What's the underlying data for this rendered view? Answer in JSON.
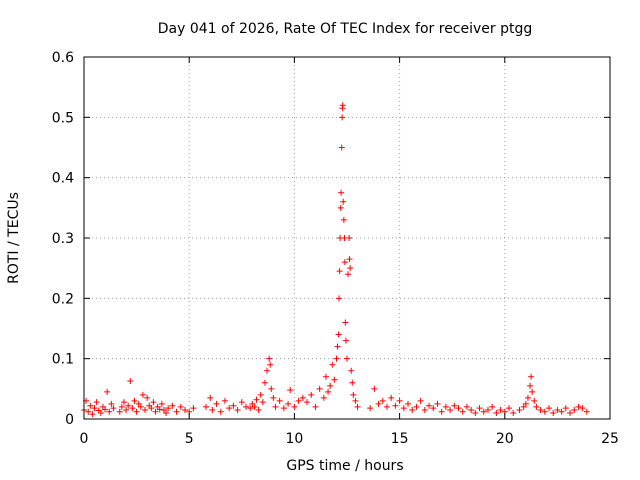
{
  "chart_data": {
    "type": "scatter",
    "title": "Day 041 of 2026, Rate Of TEC Index for receiver ptgg",
    "xlabel": "GPS time / hours",
    "ylabel": "ROTI / TECUs",
    "xlim": [
      0,
      25
    ],
    "ylim": [
      0,
      0.6
    ],
    "x_ticks": [
      "0",
      "5",
      "10",
      "15",
      "20",
      "25"
    ],
    "y_ticks": [
      "0",
      "0.1",
      "0.2",
      "0.3",
      "0.4",
      "0.5",
      "0.6"
    ],
    "x_tick_values": [
      0,
      5,
      10,
      15,
      20,
      25
    ],
    "y_tick_values": [
      0,
      0.1,
      0.2,
      0.3,
      0.4,
      0.5,
      0.6
    ],
    "grid": true,
    "marker": "+",
    "color": "#ff0000",
    "series": [
      {
        "points": [
          [
            0.0,
            0.015
          ],
          [
            0.1,
            0.03
          ],
          [
            0.2,
            0.012
          ],
          [
            0.3,
            0.022
          ],
          [
            0.4,
            0.008
          ],
          [
            0.5,
            0.018
          ],
          [
            0.6,
            0.028
          ],
          [
            0.7,
            0.014
          ],
          [
            0.8,
            0.01
          ],
          [
            0.9,
            0.02
          ],
          [
            1.0,
            0.016
          ],
          [
            1.1,
            0.045
          ],
          [
            1.2,
            0.012
          ],
          [
            1.3,
            0.025
          ],
          [
            1.4,
            0.018
          ],
          [
            1.7,
            0.012
          ],
          [
            1.8,
            0.02
          ],
          [
            1.9,
            0.028
          ],
          [
            2.0,
            0.015
          ],
          [
            2.1,
            0.022
          ],
          [
            2.2,
            0.063
          ],
          [
            2.3,
            0.018
          ],
          [
            2.4,
            0.03
          ],
          [
            2.5,
            0.012
          ],
          [
            2.6,
            0.025
          ],
          [
            2.7,
            0.02
          ],
          [
            2.8,
            0.04
          ],
          [
            2.9,
            0.015
          ],
          [
            3.0,
            0.035
          ],
          [
            3.1,
            0.022
          ],
          [
            3.2,
            0.018
          ],
          [
            3.3,
            0.028
          ],
          [
            3.4,
            0.012
          ],
          [
            3.5,
            0.02
          ],
          [
            3.6,
            0.016
          ],
          [
            3.7,
            0.025
          ],
          [
            3.8,
            0.015
          ],
          [
            3.9,
            0.01
          ],
          [
            4.0,
            0.018
          ],
          [
            4.2,
            0.022
          ],
          [
            4.4,
            0.012
          ],
          [
            4.6,
            0.02
          ],
          [
            4.8,
            0.015
          ],
          [
            5.0,
            0.012
          ],
          [
            5.2,
            0.018
          ],
          [
            5.8,
            0.02
          ],
          [
            6.0,
            0.035
          ],
          [
            6.1,
            0.015
          ],
          [
            6.3,
            0.025
          ],
          [
            6.5,
            0.012
          ],
          [
            6.7,
            0.03
          ],
          [
            6.9,
            0.018
          ],
          [
            7.1,
            0.022
          ],
          [
            7.3,
            0.015
          ],
          [
            7.5,
            0.028
          ],
          [
            7.7,
            0.02
          ],
          [
            7.9,
            0.018
          ],
          [
            8.0,
            0.025
          ],
          [
            8.1,
            0.02
          ],
          [
            8.2,
            0.032
          ],
          [
            8.3,
            0.015
          ],
          [
            8.4,
            0.04
          ],
          [
            8.5,
            0.028
          ],
          [
            8.6,
            0.06
          ],
          [
            8.7,
            0.08
          ],
          [
            8.8,
            0.1
          ],
          [
            8.85,
            0.09
          ],
          [
            8.9,
            0.05
          ],
          [
            9.0,
            0.035
          ],
          [
            9.1,
            0.02
          ],
          [
            9.3,
            0.03
          ],
          [
            9.5,
            0.018
          ],
          [
            9.7,
            0.025
          ],
          [
            9.8,
            0.048
          ],
          [
            10.0,
            0.02
          ],
          [
            10.2,
            0.03
          ],
          [
            10.4,
            0.035
          ],
          [
            10.6,
            0.028
          ],
          [
            10.8,
            0.04
          ],
          [
            11.0,
            0.02
          ],
          [
            11.2,
            0.05
          ],
          [
            11.4,
            0.035
          ],
          [
            11.5,
            0.07
          ],
          [
            11.6,
            0.045
          ],
          [
            11.7,
            0.055
          ],
          [
            11.8,
            0.09
          ],
          [
            11.9,
            0.065
          ],
          [
            12.0,
            0.1
          ],
          [
            12.05,
            0.12
          ],
          [
            12.1,
            0.14
          ],
          [
            12.12,
            0.2
          ],
          [
            12.15,
            0.245
          ],
          [
            12.17,
            0.3
          ],
          [
            12.2,
            0.35
          ],
          [
            12.22,
            0.375
          ],
          [
            12.25,
            0.45
          ],
          [
            12.27,
            0.5
          ],
          [
            12.28,
            0.515
          ],
          [
            12.3,
            0.52
          ],
          [
            12.32,
            0.36
          ],
          [
            12.35,
            0.33
          ],
          [
            12.38,
            0.3
          ],
          [
            12.4,
            0.26
          ],
          [
            12.42,
            0.16
          ],
          [
            12.45,
            0.13
          ],
          [
            12.5,
            0.1
          ],
          [
            12.55,
            0.24
          ],
          [
            12.6,
            0.3
          ],
          [
            12.62,
            0.265
          ],
          [
            12.65,
            0.25
          ],
          [
            12.7,
            0.08
          ],
          [
            12.75,
            0.06
          ],
          [
            12.8,
            0.04
          ],
          [
            12.9,
            0.03
          ],
          [
            13.0,
            0.02
          ],
          [
            13.6,
            0.018
          ],
          [
            13.8,
            0.05
          ],
          [
            14.0,
            0.025
          ],
          [
            14.2,
            0.03
          ],
          [
            14.4,
            0.02
          ],
          [
            14.6,
            0.035
          ],
          [
            14.8,
            0.022
          ],
          [
            15.0,
            0.03
          ],
          [
            15.2,
            0.018
          ],
          [
            15.4,
            0.025
          ],
          [
            15.6,
            0.015
          ],
          [
            15.8,
            0.02
          ],
          [
            16.0,
            0.03
          ],
          [
            16.2,
            0.015
          ],
          [
            16.4,
            0.022
          ],
          [
            16.6,
            0.018
          ],
          [
            16.8,
            0.025
          ],
          [
            17.0,
            0.012
          ],
          [
            17.2,
            0.02
          ],
          [
            17.4,
            0.015
          ],
          [
            17.6,
            0.022
          ],
          [
            17.8,
            0.018
          ],
          [
            18.0,
            0.012
          ],
          [
            18.2,
            0.02
          ],
          [
            18.4,
            0.015
          ],
          [
            18.6,
            0.01
          ],
          [
            18.8,
            0.018
          ],
          [
            19.0,
            0.012
          ],
          [
            19.2,
            0.015
          ],
          [
            19.4,
            0.02
          ],
          [
            19.6,
            0.01
          ],
          [
            19.8,
            0.015
          ],
          [
            20.0,
            0.012
          ],
          [
            20.2,
            0.018
          ],
          [
            20.4,
            0.01
          ],
          [
            20.7,
            0.015
          ],
          [
            20.9,
            0.02
          ],
          [
            21.0,
            0.025
          ],
          [
            21.1,
            0.035
          ],
          [
            21.2,
            0.055
          ],
          [
            21.25,
            0.07
          ],
          [
            21.3,
            0.045
          ],
          [
            21.4,
            0.03
          ],
          [
            21.5,
            0.02
          ],
          [
            21.7,
            0.015
          ],
          [
            21.9,
            0.012
          ],
          [
            22.1,
            0.018
          ],
          [
            22.3,
            0.01
          ],
          [
            22.5,
            0.015
          ],
          [
            22.7,
            0.012
          ],
          [
            22.9,
            0.018
          ],
          [
            23.1,
            0.01
          ],
          [
            23.3,
            0.015
          ],
          [
            23.5,
            0.02
          ],
          [
            23.7,
            0.018
          ],
          [
            23.9,
            0.012
          ]
        ]
      }
    ]
  }
}
